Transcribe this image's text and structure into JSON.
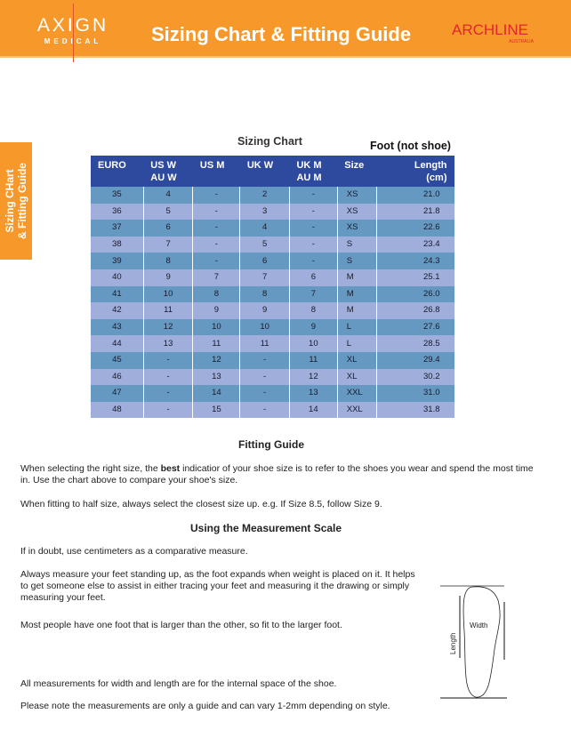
{
  "header": {
    "logo_main": "AXIGN",
    "logo_sub": "MEDICAL",
    "title": "Sizing Chart & Fitting Guide",
    "partner_logo": "ARCHLINE",
    "partner_sub": "AUSTRALIA",
    "bg": "#F7992A"
  },
  "side_tab": {
    "line1": "Sizing CHart",
    "line2": "& Fitting Guide"
  },
  "sizing": {
    "title": "Sizing Chart",
    "foot_note": "Foot (not shoe)",
    "columns": [
      "EURO",
      "US W\nAU W",
      "US M",
      "UK W",
      "UK M\nAU M",
      "Size",
      "",
      "Length\n(cm)"
    ],
    "rows": [
      [
        "35",
        "4",
        "-",
        "2",
        "-",
        "XS",
        "21.0"
      ],
      [
        "36",
        "5",
        "-",
        "3",
        "-",
        "XS",
        "21.8"
      ],
      [
        "37",
        "6",
        "-",
        "4",
        "-",
        "XS",
        "22.6"
      ],
      [
        "38",
        "7",
        "-",
        "5",
        "-",
        "S",
        "23.4"
      ],
      [
        "39",
        "8",
        "-",
        "6",
        "-",
        "S",
        "24.3"
      ],
      [
        "40",
        "9",
        "7",
        "7",
        "6",
        "M",
        "25.1"
      ],
      [
        "41",
        "10",
        "8",
        "8",
        "7",
        "M",
        "26.0"
      ],
      [
        "42",
        "11",
        "9",
        "9",
        "8",
        "M",
        "26.8"
      ],
      [
        "43",
        "12",
        "10",
        "10",
        "9",
        "L",
        "27.6"
      ],
      [
        "44",
        "13",
        "11",
        "11",
        "10",
        "L",
        "28.5"
      ],
      [
        "45",
        "-",
        "12",
        "-",
        "11",
        "XL",
        "29.4"
      ],
      [
        "46",
        "-",
        "13",
        "-",
        "12",
        "XL",
        "30.2"
      ],
      [
        "47",
        "-",
        "14",
        "-",
        "13",
        "XXL",
        "31.0"
      ],
      [
        "48",
        "-",
        "15",
        "-",
        "14",
        "XXL",
        "31.8"
      ]
    ]
  },
  "fitting": {
    "title": "Fitting Guide",
    "p1_a": "When selecting the right size, the ",
    "p1_b": "best",
    "p1_c": " indicatior of your shoe size is to refer to the shoes you wear and spend the most time in. Use the chart above to compare your shoe's size.",
    "p2": "When fitting to half size, always select the closest size up. e.g. If Size 8.5, follow Size 9."
  },
  "measure": {
    "title": "Using the Measurement Scale",
    "p1": "If in doubt, use centimeters as a comparative measure.",
    "p2": "Always measure your feet standing up, as the foot expands when weight is placed on it. It helps to get someone else to assist in either tracing your feet and measuring it the drawing or simply measuring your feet.",
    "p3": "Most people have one foot that is larger than the other, so fit to the larger foot.",
    "p4": "All measurements for width and length are for the internal space of the shoe.",
    "p5": "Please note the measurements are only a guide and can vary 1-2mm depending on style.",
    "diagram_width": "Width",
    "diagram_length": "Length"
  }
}
